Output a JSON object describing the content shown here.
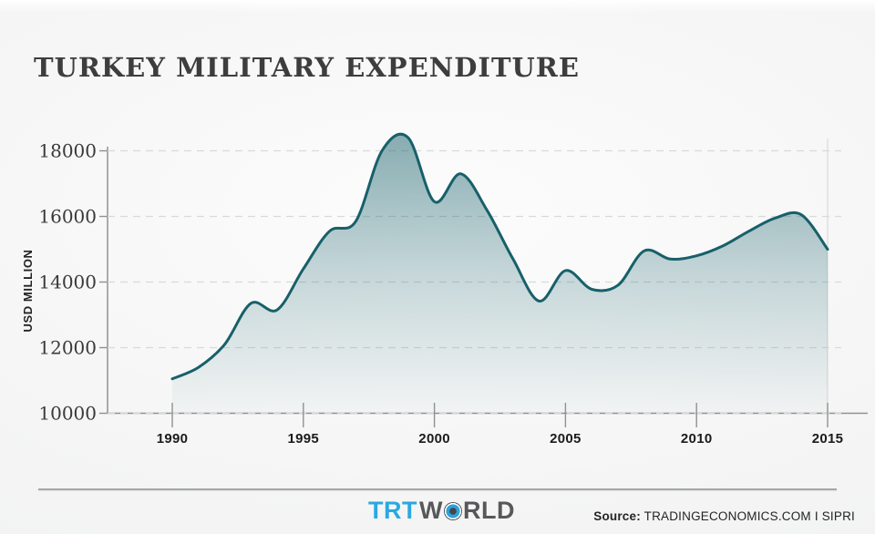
{
  "header": {
    "title": "TURKEY MILITARY EXPENDITURE"
  },
  "chart_data": {
    "type": "area",
    "title": "TURKEY MILITARY EXPENDITURE",
    "xlabel": "",
    "ylabel": "USD MILLION",
    "x": [
      1990,
      1991,
      1992,
      1993,
      1994,
      1995,
      1996,
      1997,
      1998,
      1999,
      2000,
      2001,
      2002,
      2003,
      2004,
      2005,
      2006,
      2007,
      2008,
      2009,
      2010,
      2011,
      2012,
      2013,
      2014,
      2015
    ],
    "values": [
      11050,
      11400,
      12100,
      13350,
      13150,
      14400,
      15550,
      15850,
      18000,
      18400,
      16450,
      17300,
      16200,
      14700,
      13420,
      14350,
      13780,
      13900,
      14950,
      14700,
      14800,
      15100,
      15550,
      15950,
      16050,
      15000
    ],
    "x_ticks": [
      1990,
      1995,
      2000,
      2005,
      2010,
      2015
    ],
    "y_ticks": [
      10000,
      12000,
      14000,
      16000,
      18000
    ],
    "xlim": [
      1990,
      2015
    ],
    "ylim": [
      10000,
      18600
    ],
    "grid": "horizontal-dashed",
    "legend_position": "none",
    "line_color": "#17606a",
    "fill_top_color": "rgba(23,96,106,0.50)",
    "fill_mid_color": "rgba(23,96,106,0.22)",
    "fill_bottom_color": "rgba(23,96,106,0.02)",
    "grid_color": "#d8dada",
    "axis_color": "#8f9191",
    "right_border_color": "#d9dbdc"
  },
  "footer": {
    "logo": {
      "part1": "TRT",
      "part2": "W",
      "part3": "RLD",
      "trt_color": "#29a9e1",
      "world_color": "#57585a"
    },
    "source_label": "Source:",
    "source_text": "TRADINGECONOMICS.COM I SIPRI"
  }
}
